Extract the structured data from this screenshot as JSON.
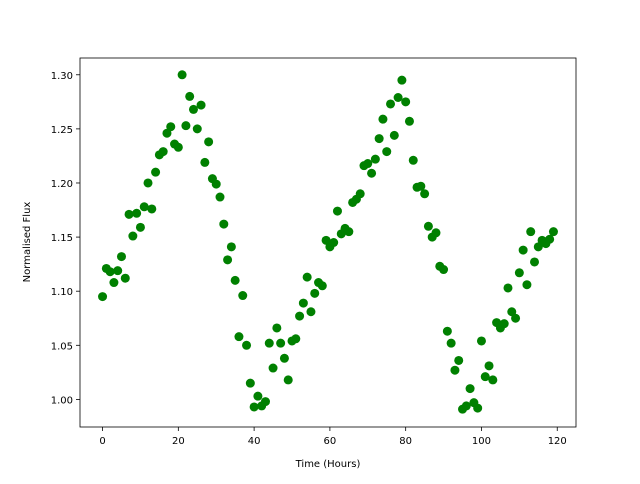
{
  "chart_data": {
    "type": "scatter",
    "xlabel": "Time (Hours)",
    "ylabel": "Normalised Flux",
    "color": "#008000",
    "x": [
      0,
      1,
      2,
      3,
      4,
      5,
      6,
      7,
      8,
      9,
      10,
      11,
      12,
      13,
      14,
      15,
      16,
      17,
      18,
      19,
      20,
      21,
      22,
      23,
      24,
      25,
      26,
      27,
      28,
      29,
      30,
      31,
      32,
      33,
      34,
      35,
      36,
      37,
      38,
      39,
      40,
      41,
      42,
      43,
      44,
      45,
      46,
      47,
      48,
      49,
      50,
      51,
      52,
      53,
      54,
      55,
      56,
      57,
      58,
      59,
      60,
      61,
      62,
      63,
      64,
      65,
      66,
      67,
      68,
      69,
      70,
      71,
      72,
      73,
      74,
      75,
      76,
      77,
      78,
      79,
      80,
      81,
      82,
      83,
      84,
      85,
      86,
      87,
      88,
      89,
      90,
      91,
      92,
      93,
      94,
      95,
      96,
      97,
      98,
      99,
      100,
      101,
      102,
      103,
      104,
      105,
      106,
      107,
      108,
      109,
      110,
      111,
      112,
      113,
      114,
      115,
      116,
      117,
      118,
      119
    ],
    "values": [
      1.095,
      1.121,
      1.118,
      1.108,
      1.119,
      1.132,
      1.112,
      1.171,
      1.151,
      1.172,
      1.159,
      1.178,
      1.2,
      1.176,
      1.21,
      1.226,
      1.229,
      1.246,
      1.252,
      1.236,
      1.233,
      1.3,
      1.253,
      1.28,
      1.268,
      1.25,
      1.272,
      1.219,
      1.238,
      1.204,
      1.199,
      1.187,
      1.162,
      1.129,
      1.141,
      1.11,
      1.058,
      1.096,
      1.05,
      1.015,
      0.993,
      1.003,
      0.994,
      0.998,
      1.052,
      1.029,
      1.066,
      1.052,
      1.038,
      1.018,
      1.054,
      1.056,
      1.077,
      1.089,
      1.113,
      1.081,
      1.098,
      1.108,
      1.105,
      1.147,
      1.141,
      1.145,
      1.174,
      1.153,
      1.158,
      1.155,
      1.182,
      1.185,
      1.19,
      1.216,
      1.218,
      1.209,
      1.222,
      1.241,
      1.259,
      1.229,
      1.273,
      1.244,
      1.279,
      1.295,
      1.275,
      1.257,
      1.221,
      1.196,
      1.197,
      1.19,
      1.16,
      1.15,
      1.154,
      1.123,
      1.12,
      1.063,
      1.052,
      1.027,
      1.036,
      0.991,
      0.994,
      1.01,
      0.997,
      0.992,
      1.054,
      1.021,
      1.031,
      1.018,
      1.071,
      1.066,
      1.07,
      1.103,
      1.081,
      1.075,
      1.117,
      1.138,
      1.106,
      1.155,
      1.127,
      1.141,
      1.147,
      1.144,
      1.148,
      1.155
    ],
    "xlim": [
      -5.95,
      124.95
    ],
    "ylim": [
      0.9745,
      1.3155
    ],
    "xticks": [
      0,
      20,
      40,
      60,
      80,
      100,
      120
    ],
    "yticks": [
      {
        "value": 1.0,
        "label": "1.00"
      },
      {
        "value": 1.05,
        "label": "1.05"
      },
      {
        "value": 1.1,
        "label": "1.10"
      },
      {
        "value": 1.15,
        "label": "1.15"
      },
      {
        "value": 1.2,
        "label": "1.20"
      },
      {
        "value": 1.25,
        "label": "1.25"
      },
      {
        "value": 1.3,
        "label": "1.30"
      }
    ]
  }
}
